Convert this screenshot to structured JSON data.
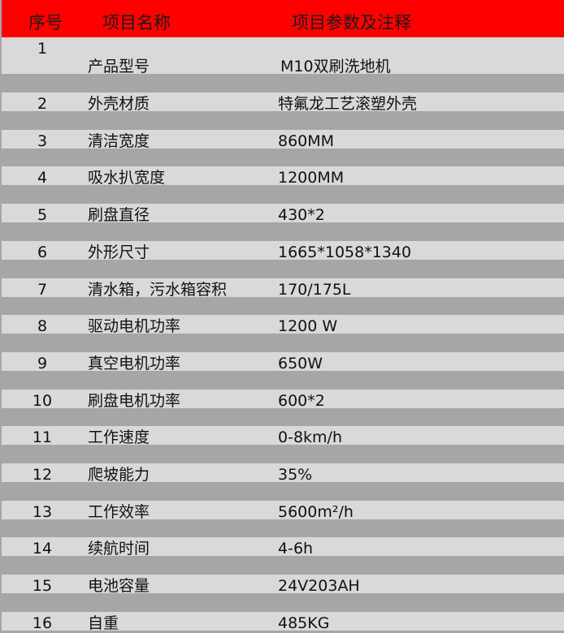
{
  "header": {
    "col_no": "序号",
    "col_name": "项目名称",
    "col_value": "项目参数及注释"
  },
  "colors": {
    "header_bg": "#ff0000",
    "row_light": "#d9d9d9",
    "row_gap": "#a6a6a6"
  },
  "rows": [
    {
      "no": "1",
      "name": "产品型号",
      "value": "M10双刷洗地机"
    },
    {
      "no": "2",
      "name": "外壳材质",
      "value": "特氟龙工艺滚塑外壳"
    },
    {
      "no": "3",
      "name": "清洁宽度",
      "value": "860MM"
    },
    {
      "no": "4",
      "name": "吸水扒宽度",
      "value": "1200MM"
    },
    {
      "no": "5",
      "name": "刷盘直径",
      "value": "430*2"
    },
    {
      "no": "6",
      "name": "外形尺寸",
      "value": "1665*1058*1340"
    },
    {
      "no": "7",
      "name": "清水箱，污水箱容积",
      "value": "170/175L"
    },
    {
      "no": "8",
      "name": "驱动电机功率",
      "value": "1200 W"
    },
    {
      "no": "9",
      "name": "真空电机功率",
      "value": "650W"
    },
    {
      "no": "10",
      "name": "刷盘电机功率",
      "value": "600*2"
    },
    {
      "no": "11",
      "name": "工作速度",
      "value": "0-8km/h"
    },
    {
      "no": "12",
      "name": "爬坡能力",
      "value": "35%"
    },
    {
      "no": "13",
      "name": "工作效率",
      "value": "5600m²/h"
    },
    {
      "no": "14",
      "name": "续航时间",
      "value": "4-6h"
    },
    {
      "no": "15",
      "name": "电池容量",
      "value": "24V203AH"
    },
    {
      "no": "16",
      "name": "自重",
      "value": "485KG"
    }
  ]
}
